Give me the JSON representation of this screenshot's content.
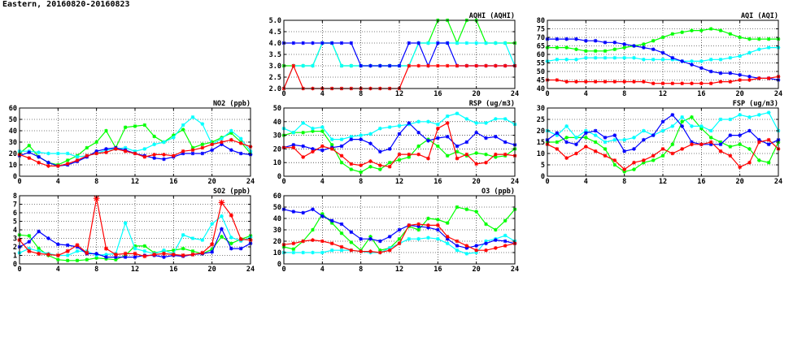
{
  "page": {
    "title": "Eastern, 20160820-20160823"
  },
  "series_colors": [
    "#00ff00",
    "#0000ff",
    "#00ffff",
    "#ff0000"
  ],
  "chart_data": [
    {
      "type": "line",
      "title": "AQHI (AQHI)",
      "x_ticks": [
        0,
        4,
        8,
        12,
        16,
        20,
        24
      ],
      "xlim": [
        0,
        24
      ],
      "y_ticks": [
        2.0,
        2.5,
        3.0,
        3.5,
        4.0,
        4.5,
        5.0
      ],
      "ylim": [
        2,
        5
      ],
      "y_decimals": 1,
      "grid": true,
      "series": [
        {
          "color": "#00ff00",
          "values": [
            3,
            3,
            3,
            3,
            4,
            4,
            3,
            3,
            3,
            3,
            3,
            3,
            3,
            3,
            4,
            4,
            5,
            5,
            4,
            5,
            5,
            4,
            4,
            4,
            4
          ]
        },
        {
          "color": "#00ffff",
          "values": [
            2,
            3,
            3,
            3,
            4,
            4,
            3,
            3,
            3,
            3,
            3,
            3,
            3,
            3,
            4,
            4,
            4,
            4,
            4,
            4,
            4,
            4,
            4,
            4,
            3
          ]
        },
        {
          "color": "#0000ff",
          "values": [
            4,
            4,
            4,
            4,
            4,
            4,
            4,
            4,
            3,
            3,
            3,
            3,
            3,
            4,
            4,
            3,
            4,
            4,
            3,
            3,
            3,
            3,
            3,
            3,
            3
          ]
        },
        {
          "color": "#ff0000",
          "values": [
            2,
            3,
            2,
            2,
            2,
            2,
            2,
            2,
            2,
            2,
            2,
            2,
            2,
            3,
            3,
            3,
            3,
            3,
            3,
            3,
            3,
            3,
            3,
            3,
            3
          ]
        }
      ]
    },
    {
      "type": "line",
      "title": "AQI (AQI)",
      "x_ticks": [
        0,
        4,
        8,
        12,
        16,
        20,
        24
      ],
      "xlim": [
        0,
        24
      ],
      "y_ticks": [
        40,
        45,
        50,
        55,
        60,
        65,
        70,
        75,
        80
      ],
      "ylim": [
        40,
        80
      ],
      "y_decimals": 0,
      "grid": true,
      "series": [
        {
          "color": "#00ff00",
          "values": [
            64,
            64,
            64,
            63,
            62,
            62,
            62,
            63,
            64,
            65,
            66,
            68,
            70,
            72,
            73,
            74,
            74,
            75,
            74,
            72,
            70,
            69,
            69,
            69,
            69
          ]
        },
        {
          "color": "#00ffff",
          "values": [
            56,
            57,
            57,
            57,
            58,
            58,
            58,
            58,
            58,
            58,
            57,
            57,
            57,
            57,
            56,
            56,
            56,
            57,
            57,
            58,
            59,
            61,
            63,
            64,
            64
          ]
        },
        {
          "color": "#0000ff",
          "values": [
            69,
            69,
            69,
            69,
            68,
            68,
            67,
            67,
            66,
            65,
            64,
            63,
            61,
            58,
            56,
            54,
            52,
            50,
            49,
            49,
            48,
            47,
            46,
            46,
            45
          ]
        },
        {
          "color": "#ff0000",
          "values": [
            45,
            45,
            44,
            44,
            44,
            44,
            44,
            44,
            44,
            44,
            44,
            43,
            43,
            43,
            43,
            43,
            43,
            43,
            44,
            44,
            45,
            45,
            46,
            46,
            47
          ]
        }
      ]
    },
    {
      "type": "line",
      "title": "NO2 (ppb)",
      "x_ticks": [
        0,
        4,
        8,
        12,
        16,
        20,
        24
      ],
      "xlim": [
        0,
        24
      ],
      "y_ticks": [
        0,
        10,
        20,
        30,
        40,
        50,
        60
      ],
      "ylim": [
        0,
        60
      ],
      "y_decimals": 0,
      "grid": true,
      "series": [
        {
          "color": "#00ff00",
          "values": [
            20,
            27,
            17,
            12,
            10,
            14,
            18,
            25,
            30,
            40,
            25,
            43,
            44,
            45,
            35,
            30,
            36,
            41,
            25,
            28,
            30,
            34,
            38,
            30,
            20
          ]
        },
        {
          "color": "#00ffff",
          "values": [
            22,
            22,
            21,
            20,
            20,
            20,
            17,
            18,
            20,
            23,
            24,
            25,
            22,
            24,
            28,
            30,
            34,
            45,
            52,
            46,
            28,
            33,
            40,
            33,
            22
          ]
        },
        {
          "color": "#0000ff",
          "values": [
            18,
            21,
            17,
            12,
            9,
            10,
            13,
            17,
            22,
            24,
            25,
            23,
            20,
            18,
            16,
            15,
            17,
            20,
            20,
            20,
            23,
            28,
            23,
            20,
            19
          ]
        },
        {
          "color": "#ff0000",
          "values": [
            19,
            16,
            12,
            9,
            9,
            11,
            14,
            18,
            20,
            21,
            24,
            22,
            20,
            17,
            19,
            19,
            18,
            22,
            23,
            25,
            28,
            30,
            32,
            29,
            26
          ]
        }
      ]
    },
    {
      "type": "line",
      "title": "RSP (ug/m3)",
      "x_ticks": [
        0,
        4,
        8,
        12,
        16,
        20,
        24
      ],
      "xlim": [
        0,
        24
      ],
      "y_ticks": [
        0,
        10,
        20,
        30,
        40,
        50
      ],
      "ylim": [
        0,
        50
      ],
      "y_decimals": 0,
      "grid": true,
      "series": [
        {
          "color": "#00ff00",
          "values": [
            30,
            32,
            32,
            33,
            33,
            23,
            10,
            5,
            3,
            7,
            5,
            10,
            12,
            14,
            22,
            27,
            22,
            15,
            18,
            15,
            17,
            16,
            14,
            15,
            20
          ]
        },
        {
          "color": "#00ffff",
          "values": [
            35,
            32,
            39,
            35,
            36,
            27,
            27,
            29,
            30,
            31,
            35,
            36,
            37,
            38,
            40,
            40,
            38,
            44,
            46,
            42,
            39,
            39,
            42,
            42,
            38
          ]
        },
        {
          "color": "#0000ff",
          "values": [
            21,
            23,
            22,
            20,
            19,
            21,
            22,
            27,
            27,
            24,
            18,
            20,
            31,
            39,
            32,
            26,
            28,
            29,
            22,
            25,
            32,
            28,
            29,
            25,
            23
          ]
        },
        {
          "color": "#ff0000",
          "values": [
            21,
            21,
            14,
            18,
            22,
            20,
            15,
            9,
            8,
            11,
            8,
            7,
            16,
            16,
            16,
            13,
            35,
            39,
            13,
            16,
            9,
            10,
            16,
            16,
            15
          ]
        }
      ]
    },
    {
      "type": "line",
      "title": "FSP (ug/m3)",
      "x_ticks": [
        0,
        4,
        8,
        12,
        16,
        20,
        24
      ],
      "xlim": [
        0,
        24
      ],
      "y_ticks": [
        0,
        5,
        10,
        15,
        20,
        25,
        30
      ],
      "ylim": [
        0,
        30
      ],
      "y_decimals": 0,
      "grid": true,
      "series": [
        {
          "color": "#00ff00",
          "values": [
            15,
            15,
            17,
            17,
            17,
            15,
            12,
            5,
            2,
            3,
            6,
            7,
            9,
            14,
            24,
            26,
            21,
            17,
            15,
            13,
            14,
            12,
            7,
            6,
            15
          ]
        },
        {
          "color": "#00ffff",
          "values": [
            20,
            18,
            22,
            17,
            20,
            18,
            15,
            16,
            16,
            17,
            20,
            18,
            20,
            22,
            26,
            22,
            22,
            20,
            25,
            25,
            27,
            26,
            27,
            28,
            20
          ]
        },
        {
          "color": "#0000ff",
          "values": [
            16,
            19,
            15,
            14,
            19,
            20,
            17,
            18,
            11,
            12,
            16,
            18,
            24,
            27,
            22,
            15,
            14,
            14,
            14,
            18,
            18,
            20,
            16,
            14,
            16
          ]
        },
        {
          "color": "#ff0000",
          "values": [
            14,
            12,
            8,
            10,
            13,
            11,
            9,
            7,
            3,
            6,
            7,
            9,
            12,
            10,
            12,
            14,
            14,
            15,
            11,
            9,
            4,
            6,
            15,
            16,
            12
          ]
        }
      ]
    },
    {
      "type": "line",
      "title": "SO2 (ppb)",
      "x_ticks": [
        0,
        4,
        8,
        12,
        16,
        20,
        24
      ],
      "xlim": [
        0,
        24
      ],
      "y_ticks": [
        0,
        1,
        2,
        3,
        4,
        5,
        6,
        7,
        8
      ],
      "ylim": [
        0,
        8
      ],
      "y_decimals": 0,
      "grid": true,
      "series": [
        {
          "color": "#00ff00",
          "values": [
            3.4,
            3.3,
            1.8,
            1.0,
            0.5,
            0.4,
            0.4,
            0.5,
            0.7,
            0.6,
            0.5,
            1.0,
            2.1,
            2.1,
            1.3,
            1.5,
            1.6,
            1.8,
            1.5,
            1.2,
            1.7,
            3.2,
            2.4,
            2.9,
            3.3
          ]
        },
        {
          "color": "#00ffff",
          "values": [
            1.3,
            1.8,
            1.5,
            1.2,
            1.0,
            1.0,
            1.5,
            1.5,
            1.0,
            1.1,
            1.2,
            4.8,
            1.8,
            1.5,
            1.2,
            1.6,
            1.2,
            3.4,
            3.0,
            2.8,
            4.7,
            5.6,
            3.1,
            2.7,
            3.1
          ]
        },
        {
          "color": "#0000ff",
          "values": [
            2.0,
            2.6,
            3.8,
            3.0,
            2.3,
            2.2,
            2.0,
            1.2,
            1.2,
            0.8,
            0.8,
            0.8,
            0.8,
            1.0,
            1.0,
            0.8,
            1.0,
            0.9,
            1.1,
            1.2,
            1.4,
            4.1,
            1.8,
            1.8,
            2.4
          ]
        },
        {
          "color": "#ff0000",
          "values": [
            2.8,
            1.5,
            1.2,
            1.1,
            1.0,
            1.5,
            2.2,
            1.3,
            7.7,
            1.8,
            1.1,
            1.2,
            1.2,
            0.9,
            1.1,
            1.2,
            1.1,
            1.0,
            1.1,
            1.3,
            2.3,
            7.2,
            5.7,
            2.9,
            2.8
          ]
        }
      ]
    },
    {
      "type": "line",
      "title": "O3 (ppb)",
      "x_ticks": [
        0,
        4,
        8,
        12,
        16,
        20,
        24
      ],
      "xlim": [
        0,
        24
      ],
      "y_ticks": [
        0,
        10,
        20,
        30,
        40,
        50,
        60
      ],
      "ylim": [
        0,
        60
      ],
      "y_decimals": 0,
      "grid": true,
      "series": [
        {
          "color": "#00ff00",
          "values": [
            15,
            13,
            20,
            30,
            44,
            36,
            27,
            19,
            12,
            24,
            12,
            14,
            22,
            33,
            30,
            40,
            39,
            36,
            50,
            48,
            46,
            35,
            30,
            38,
            48
          ]
        },
        {
          "color": "#00ffff",
          "values": [
            10,
            10,
            10,
            10,
            10,
            12,
            12,
            12,
            11,
            10,
            10,
            14,
            18,
            22,
            22,
            23,
            22,
            18,
            12,
            9,
            10,
            20,
            22,
            25,
            20
          ]
        },
        {
          "color": "#0000ff",
          "values": [
            48,
            46,
            45,
            48,
            42,
            38,
            35,
            28,
            22,
            22,
            20,
            24,
            30,
            34,
            33,
            32,
            30,
            22,
            16,
            14,
            16,
            18,
            21,
            20,
            18
          ]
        },
        {
          "color": "#ff0000",
          "values": [
            17,
            18,
            20,
            21,
            20,
            18,
            15,
            12,
            11,
            11,
            10,
            12,
            18,
            34,
            35,
            34,
            34,
            24,
            20,
            16,
            12,
            12,
            14,
            16,
            18
          ]
        }
      ]
    }
  ]
}
